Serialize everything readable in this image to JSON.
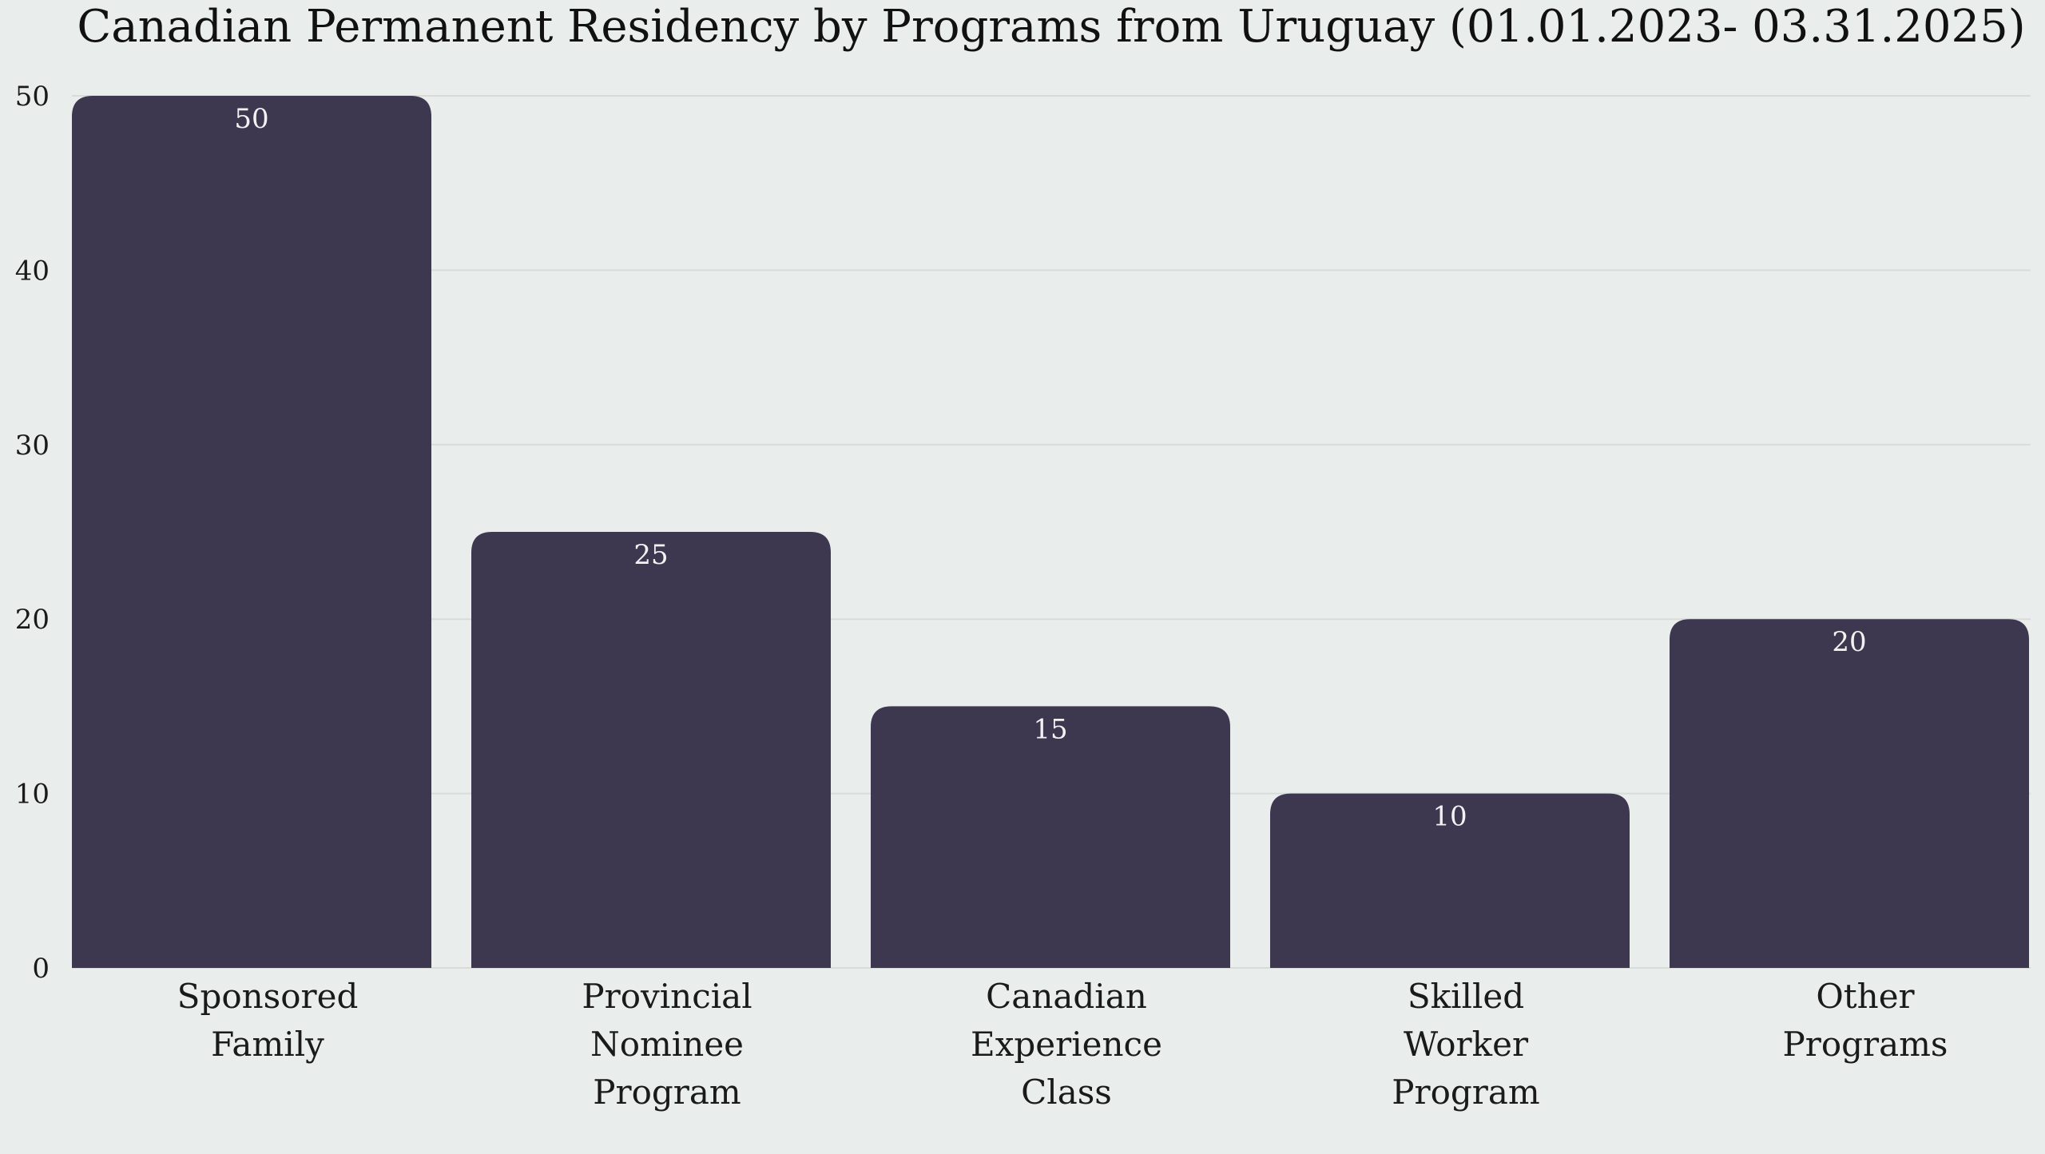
{
  "chart_data": {
    "type": "bar",
    "title": "Canadian Permanent Residency by Programs from Uruguay (01.01.2023- 03.31.2025)",
    "xlabel": "",
    "ylabel": "",
    "categories": [
      [
        "Sponsored",
        "Family"
      ],
      [
        "Provincial",
        "Nominee",
        "Program"
      ],
      [
        "Canadian",
        "Experience",
        "Class"
      ],
      [
        "Skilled",
        "Worker",
        "Program"
      ],
      [
        "Other",
        "Programs"
      ]
    ],
    "values": [
      50,
      25,
      15,
      10,
      20
    ],
    "data_labels": [
      "50",
      "25",
      "15",
      "10",
      "20"
    ],
    "ylim": [
      0,
      50
    ],
    "yticks": [
      0,
      10,
      20,
      30,
      40,
      50
    ],
    "grid": true,
    "bar_color": "#3d384f"
  }
}
